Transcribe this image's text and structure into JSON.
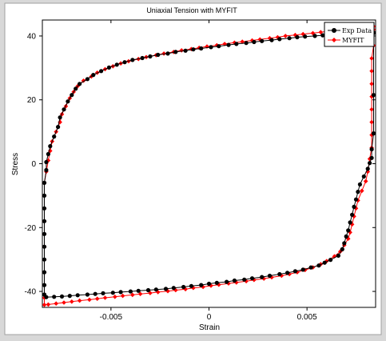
{
  "chart_data": {
    "type": "line",
    "title": "Uniaxial Tension with MYFIT",
    "xlabel": "Strain",
    "ylabel": "Stress",
    "xlim": [
      -0.0085,
      0.0085
    ],
    "ylim": [
      -45,
      45
    ],
    "x_ticks": [
      -0.005,
      0,
      0.005
    ],
    "x_tick_labels": [
      "-0.005",
      "0",
      "0.005"
    ],
    "y_ticks": [
      -40,
      -20,
      0,
      20,
      40
    ],
    "y_tick_labels": [
      "-40",
      "-20",
      "0",
      "20",
      "40"
    ],
    "grid": false,
    "legend_position": "top-right",
    "series": [
      {
        "name": "Exp Data",
        "color": "#000000",
        "marker": "circle",
        "points": [
          [
            0.0084,
            41.0
          ],
          [
            0.0084,
            21.5
          ],
          [
            0.0084,
            9.5
          ],
          [
            0.0083,
            4.5
          ],
          [
            0.0083,
            1.8
          ],
          [
            0.0082,
            0.2
          ],
          [
            0.0081,
            -1.6
          ],
          [
            0.0079,
            -4.0
          ],
          [
            0.0077,
            -6.5
          ],
          [
            0.0076,
            -8.8
          ],
          [
            0.0075,
            -11.2
          ],
          [
            0.0074,
            -13.5
          ],
          [
            0.0073,
            -16.0
          ],
          [
            0.0072,
            -18.4
          ],
          [
            0.0071,
            -20.9
          ],
          [
            0.007,
            -22.8
          ],
          [
            0.0069,
            -24.9
          ],
          [
            0.0068,
            -26.8
          ],
          [
            0.0066,
            -28.8
          ],
          [
            0.0062,
            -30.1
          ],
          [
            0.0059,
            -31.0
          ],
          [
            0.0056,
            -31.9
          ],
          [
            0.0052,
            -32.5
          ],
          [
            0.0048,
            -33.2
          ],
          [
            0.0044,
            -33.7
          ],
          [
            0.004,
            -34.2
          ],
          [
            0.0036,
            -34.6
          ],
          [
            0.0031,
            -35.1
          ],
          [
            0.0027,
            -35.5
          ],
          [
            0.0022,
            -35.9
          ],
          [
            0.0018,
            -36.3
          ],
          [
            0.0013,
            -36.6
          ],
          [
            0.0009,
            -37.0
          ],
          [
            0.0004,
            -37.3
          ],
          [
            0.0,
            -37.6
          ],
          [
            -0.0004,
            -38.0
          ],
          [
            -0.0009,
            -38.3
          ],
          [
            -0.0013,
            -38.6
          ],
          [
            -0.0018,
            -38.9
          ],
          [
            -0.0022,
            -39.2
          ],
          [
            -0.0027,
            -39.4
          ],
          [
            -0.0031,
            -39.6
          ],
          [
            -0.0036,
            -39.8
          ],
          [
            -0.004,
            -40.0
          ],
          [
            -0.0045,
            -40.2
          ],
          [
            -0.0049,
            -40.4
          ],
          [
            -0.0054,
            -40.6
          ],
          [
            -0.0058,
            -40.8
          ],
          [
            -0.0062,
            -41.0
          ],
          [
            -0.0067,
            -41.2
          ],
          [
            -0.0071,
            -41.4
          ],
          [
            -0.0075,
            -41.6
          ],
          [
            -0.0079,
            -41.7
          ],
          [
            -0.0083,
            -41.8
          ],
          [
            -0.0084,
            -41.0
          ],
          [
            -0.0084,
            -38.0
          ],
          [
            -0.0084,
            -34.0
          ],
          [
            -0.0084,
            -30.0
          ],
          [
            -0.0084,
            -26.0
          ],
          [
            -0.0084,
            -22.0
          ],
          [
            -0.0084,
            -18.0
          ],
          [
            -0.0084,
            -14.0
          ],
          [
            -0.0084,
            -10.0
          ],
          [
            -0.0084,
            -6.0
          ],
          [
            -0.0083,
            -2.0
          ],
          [
            -0.0083,
            0.5
          ],
          [
            -0.0082,
            3.0
          ],
          [
            -0.0081,
            5.5
          ],
          [
            -0.0079,
            8.5
          ],
          [
            -0.0077,
            11.5
          ],
          [
            -0.0076,
            14.5
          ],
          [
            -0.0074,
            17.0
          ],
          [
            -0.0072,
            19.5
          ],
          [
            -0.007,
            21.5
          ],
          [
            -0.0068,
            23.5
          ],
          [
            -0.0066,
            25.0
          ],
          [
            -0.0062,
            26.5
          ],
          [
            -0.0059,
            27.8
          ],
          [
            -0.0055,
            29.0
          ],
          [
            -0.0051,
            30.1
          ],
          [
            -0.0047,
            31.0
          ],
          [
            -0.0043,
            31.8
          ],
          [
            -0.0039,
            32.5
          ],
          [
            -0.0034,
            33.1
          ],
          [
            -0.003,
            33.6
          ],
          [
            -0.0026,
            34.1
          ],
          [
            -0.0021,
            34.5
          ],
          [
            -0.0017,
            35.0
          ],
          [
            -0.0012,
            35.4
          ],
          [
            -0.0008,
            35.8
          ],
          [
            -0.0004,
            36.1
          ],
          [
            0.0001,
            36.5
          ],
          [
            0.0005,
            36.8
          ],
          [
            0.001,
            37.2
          ],
          [
            0.0014,
            37.5
          ],
          [
            0.0019,
            37.8
          ],
          [
            0.0023,
            38.1
          ],
          [
            0.0027,
            38.4
          ],
          [
            0.0032,
            38.7
          ],
          [
            0.0036,
            39.0
          ],
          [
            0.0041,
            39.3
          ],
          [
            0.0045,
            39.6
          ],
          [
            0.0049,
            39.8
          ],
          [
            0.0054,
            40.0
          ],
          [
            0.0058,
            40.2
          ],
          [
            0.0062,
            40.4
          ],
          [
            0.0067,
            40.6
          ],
          [
            0.0071,
            40.8
          ],
          [
            0.0075,
            40.9
          ],
          [
            0.008,
            41.0
          ],
          [
            0.0084,
            41.0
          ]
        ]
      },
      {
        "name": "MYFIT",
        "color": "#ff0000",
        "marker": "diamond",
        "points": [
          [
            0.0084,
            42.0
          ],
          [
            0.0084,
            41.0
          ],
          [
            0.0084,
            37.0
          ],
          [
            0.0083,
            33.0
          ],
          [
            0.0083,
            29.0
          ],
          [
            0.0083,
            25.0
          ],
          [
            0.0083,
            21.0
          ],
          [
            0.0083,
            17.0
          ],
          [
            0.0083,
            13.0
          ],
          [
            0.0083,
            9.0
          ],
          [
            0.0083,
            5.0
          ],
          [
            0.0082,
            1.5
          ],
          [
            0.0081,
            -2.5
          ],
          [
            0.008,
            -5.5
          ],
          [
            0.0078,
            -8.5
          ],
          [
            0.0076,
            -11.5
          ],
          [
            0.0075,
            -14.0
          ],
          [
            0.0074,
            -16.5
          ],
          [
            0.0073,
            -19.0
          ],
          [
            0.0072,
            -21.5
          ],
          [
            0.0071,
            -23.5
          ],
          [
            0.0069,
            -25.5
          ],
          [
            0.0067,
            -27.5
          ],
          [
            0.0064,
            -29.0
          ],
          [
            0.006,
            -30.5
          ],
          [
            0.0057,
            -31.5
          ],
          [
            0.0053,
            -32.5
          ],
          [
            0.0049,
            -33.3
          ],
          [
            0.0045,
            -34.0
          ],
          [
            0.0041,
            -34.6
          ],
          [
            0.0037,
            -35.1
          ],
          [
            0.0032,
            -35.6
          ],
          [
            0.0028,
            -36.0
          ],
          [
            0.0023,
            -36.4
          ],
          [
            0.0019,
            -36.8
          ],
          [
            0.0014,
            -37.2
          ],
          [
            0.001,
            -37.5
          ],
          [
            0.0005,
            -37.9
          ],
          [
            0.0001,
            -38.2
          ],
          [
            -0.0003,
            -38.6
          ],
          [
            -0.0008,
            -38.9
          ],
          [
            -0.0012,
            -39.3
          ],
          [
            -0.0017,
            -39.6
          ],
          [
            -0.0021,
            -39.9
          ],
          [
            -0.0026,
            -40.2
          ],
          [
            -0.003,
            -40.5
          ],
          [
            -0.0035,
            -40.8
          ],
          [
            -0.0039,
            -41.1
          ],
          [
            -0.0044,
            -41.4
          ],
          [
            -0.0048,
            -41.7
          ],
          [
            -0.0053,
            -42.0
          ],
          [
            -0.0057,
            -42.3
          ],
          [
            -0.0061,
            -42.6
          ],
          [
            -0.0066,
            -42.9
          ],
          [
            -0.007,
            -43.2
          ],
          [
            -0.0074,
            -43.5
          ],
          [
            -0.0078,
            -43.8
          ],
          [
            -0.0082,
            -44.1
          ],
          [
            -0.0084,
            -44.2
          ],
          [
            -0.0084,
            -42.0
          ],
          [
            -0.0084,
            -38.0
          ],
          [
            -0.0084,
            -34.0
          ],
          [
            -0.0084,
            -30.0
          ],
          [
            -0.0084,
            -26.0
          ],
          [
            -0.0084,
            -22.0
          ],
          [
            -0.0084,
            -18.0
          ],
          [
            -0.0084,
            -14.0
          ],
          [
            -0.0084,
            -10.0
          ],
          [
            -0.0084,
            -6.0
          ],
          [
            -0.0083,
            -2.5
          ],
          [
            -0.0082,
            1.0
          ],
          [
            -0.0081,
            4.0
          ],
          [
            -0.008,
            7.0
          ],
          [
            -0.0078,
            10.0
          ],
          [
            -0.0076,
            13.0
          ],
          [
            -0.0075,
            15.5
          ],
          [
            -0.0073,
            18.0
          ],
          [
            -0.0071,
            20.5
          ],
          [
            -0.0069,
            22.5
          ],
          [
            -0.0067,
            24.3
          ],
          [
            -0.0064,
            26.0
          ],
          [
            -0.006,
            27.3
          ],
          [
            -0.0057,
            28.5
          ],
          [
            -0.0053,
            29.6
          ],
          [
            -0.0049,
            30.5
          ],
          [
            -0.0045,
            31.4
          ],
          [
            -0.0041,
            32.1
          ],
          [
            -0.0036,
            32.8
          ],
          [
            -0.0032,
            33.4
          ],
          [
            -0.0027,
            34.0
          ],
          [
            -0.0023,
            34.5
          ],
          [
            -0.0018,
            35.0
          ],
          [
            -0.0014,
            35.5
          ],
          [
            -0.0009,
            35.9
          ],
          [
            -0.0005,
            36.3
          ],
          [
            -0.0001,
            36.7
          ],
          [
            0.0004,
            37.1
          ],
          [
            0.0008,
            37.5
          ],
          [
            0.0013,
            37.9
          ],
          [
            0.0017,
            38.2
          ],
          [
            0.0022,
            38.6
          ],
          [
            0.0026,
            38.9
          ],
          [
            0.0031,
            39.3
          ],
          [
            0.0035,
            39.6
          ],
          [
            0.0039,
            40.0
          ],
          [
            0.0044,
            40.3
          ],
          [
            0.0048,
            40.6
          ],
          [
            0.0053,
            40.9
          ],
          [
            0.0057,
            41.2
          ],
          [
            0.0061,
            41.5
          ],
          [
            0.0066,
            41.8
          ],
          [
            0.007,
            42.1
          ],
          [
            0.0074,
            42.4
          ],
          [
            0.0078,
            42.7
          ],
          [
            0.0082,
            43.0
          ],
          [
            0.0084,
            43.0
          ]
        ]
      }
    ]
  }
}
